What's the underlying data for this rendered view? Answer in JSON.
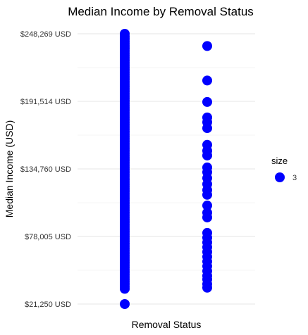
{
  "chart_data": {
    "type": "scatter",
    "title": "Median Income by Removal Status",
    "xlabel": "Removal Status",
    "ylabel": "Median Income (USD)",
    "y_ticks": [
      {
        "value": 21250,
        "label": "$21,250 USD"
      },
      {
        "value": 78005,
        "label": "$78,005 USD"
      },
      {
        "value": 134760,
        "label": "$134,760 USD"
      },
      {
        "value": 191514,
        "label": "$191,514 USD"
      },
      {
        "value": 248269,
        "label": "$248,269 USD"
      }
    ],
    "ylim": [
      21250,
      248269
    ],
    "x_tick_labels_shown": false,
    "grid": true,
    "point_color": "#0000ff",
    "legend": {
      "title": "size",
      "entries": [
        {
          "label": "3"
        }
      ],
      "position": "right"
    },
    "series": [
      {
        "group_index": 0,
        "y": [
          21250,
          34000,
          36000,
          38000,
          40000,
          42000,
          44000,
          46000,
          48000,
          50000,
          52000,
          54000,
          56000,
          58000,
          60000,
          62000,
          64000,
          66000,
          68000,
          70000,
          72000,
          74000,
          76000,
          78000,
          80000,
          82000,
          84000,
          86000,
          88000,
          90000,
          92000,
          94000,
          96000,
          98000,
          100000,
          102000,
          104000,
          106000,
          108000,
          110000,
          112000,
          114000,
          116000,
          118000,
          120000,
          122000,
          124000,
          126000,
          128000,
          130000,
          132000,
          134000,
          136000,
          138000,
          140000,
          142000,
          144000,
          146000,
          148000,
          150000,
          152000,
          154000,
          156000,
          158000,
          160000,
          162000,
          164000,
          166000,
          168000,
          170000,
          172000,
          174000,
          176000,
          178000,
          180000,
          182000,
          184000,
          186000,
          188000,
          190000,
          192000,
          194000,
          196000,
          198000,
          200000,
          202000,
          204000,
          206000,
          208000,
          210000,
          212000,
          214000,
          216000,
          218000,
          220000,
          222000,
          224000,
          226000,
          228000,
          230000,
          232000,
          234000,
          236000,
          238000,
          240000,
          242000,
          244000,
          246000,
          248269
        ]
      },
      {
        "group_index": 1,
        "y": [
          35000,
          38000,
          42000,
          45000,
          49000,
          53000,
          57000,
          61000,
          65000,
          69000,
          73000,
          77000,
          81000,
          94000,
          98000,
          104000,
          113000,
          117000,
          122000,
          127000,
          132000,
          136000,
          146000,
          150000,
          155000,
          169000,
          174000,
          178000,
          191000,
          209000,
          238000
        ]
      }
    ]
  }
}
